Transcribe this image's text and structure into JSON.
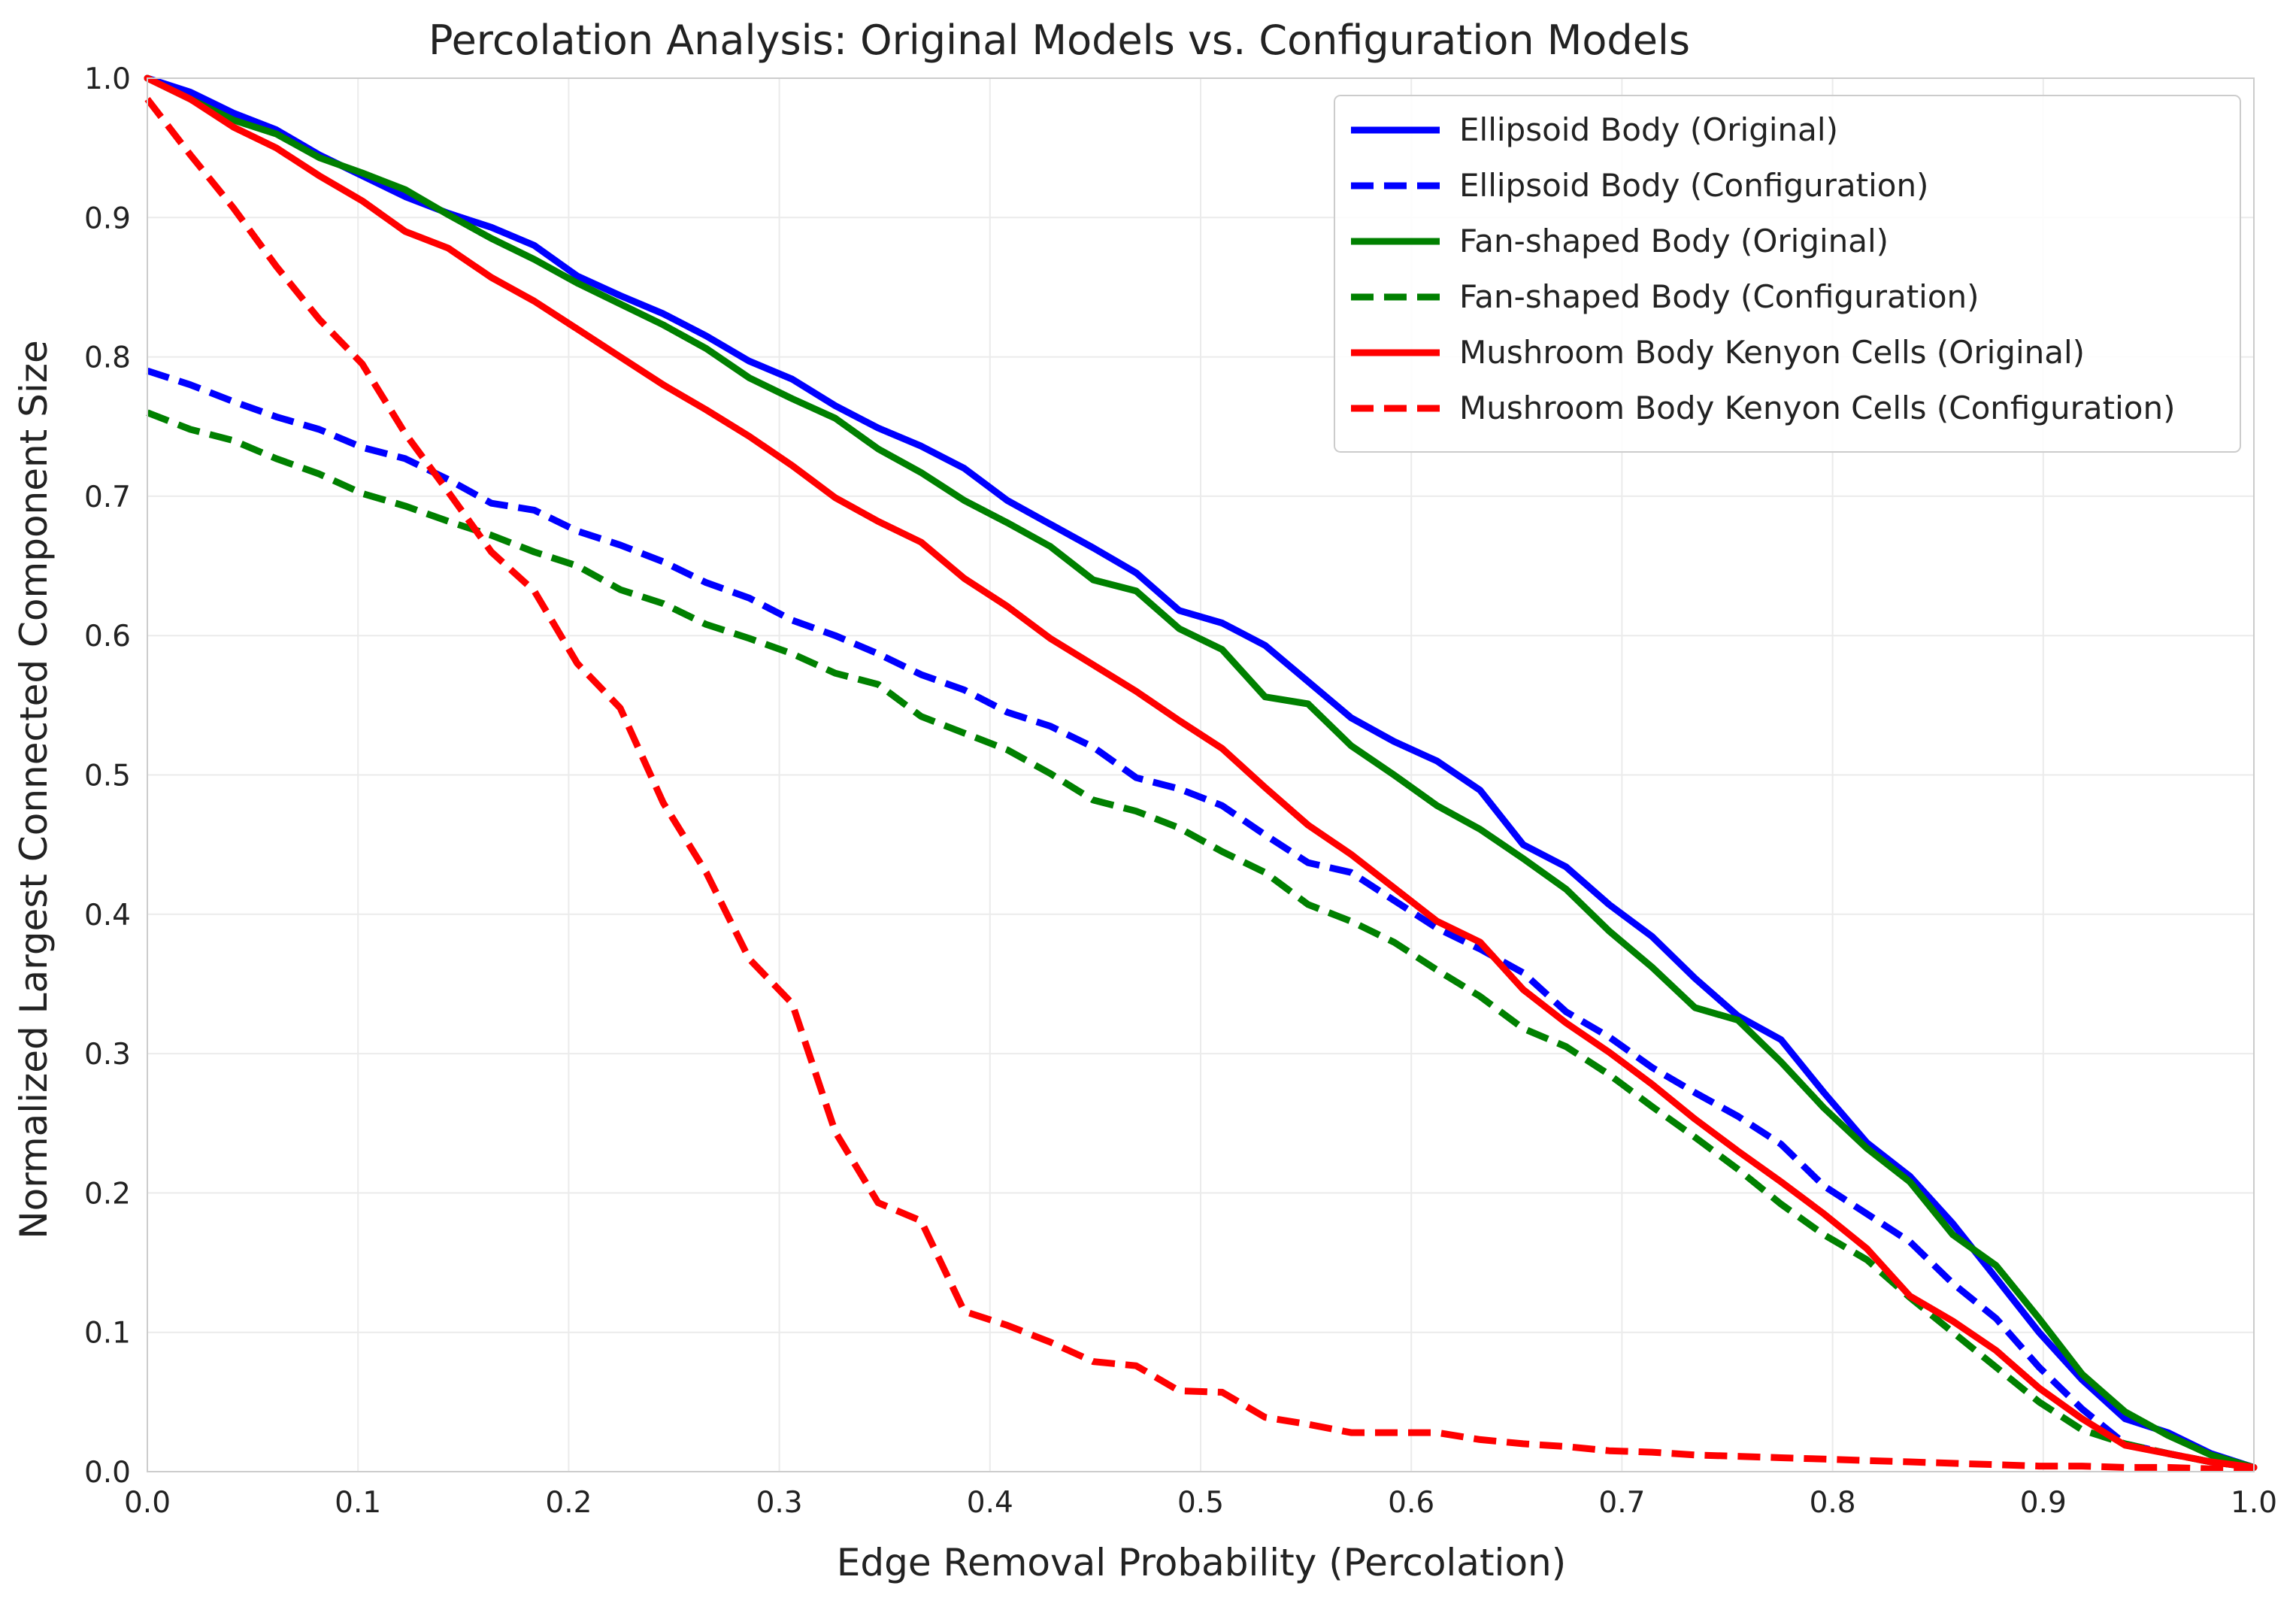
{
  "chart_data": {
    "type": "line",
    "title": "Percolation Analysis: Original Models vs. Configuration Models",
    "xlabel": "Edge Removal Probability (Percolation)",
    "ylabel": "Normalized Largest Connected Component Size",
    "xlim": [
      0.0,
      1.0
    ],
    "ylim": [
      0.0,
      1.0
    ],
    "xticks": [
      "0.0",
      "0.1",
      "0.2",
      "0.3",
      "0.4",
      "0.5",
      "0.6",
      "0.7",
      "0.8",
      "0.9",
      "1.0"
    ],
    "yticks": [
      "0.0",
      "0.1",
      "0.2",
      "0.3",
      "0.4",
      "0.5",
      "0.6",
      "0.7",
      "0.8",
      "0.9",
      "1.0"
    ],
    "grid": true,
    "legend_position": "top-right",
    "x": [
      0.0,
      0.0204,
      0.0408,
      0.0612,
      0.0816,
      0.102,
      0.1224,
      0.1429,
      0.1633,
      0.1837,
      0.2041,
      0.2245,
      0.2449,
      0.2653,
      0.2857,
      0.3061,
      0.3265,
      0.3469,
      0.3673,
      0.3878,
      0.4082,
      0.4286,
      0.449,
      0.4694,
      0.4898,
      0.5102,
      0.5306,
      0.551,
      0.5714,
      0.5918,
      0.6122,
      0.6327,
      0.6531,
      0.6735,
      0.6939,
      0.7143,
      0.7347,
      0.7551,
      0.7755,
      0.7959,
      0.8163,
      0.8367,
      0.8571,
      0.8776,
      0.898,
      0.9184,
      0.9388,
      0.9592,
      0.9796,
      1.0
    ],
    "series": [
      {
        "name": "Ellipsoid Body (Original)",
        "color": "#0000ff",
        "style": "solid",
        "values": [
          1.0,
          0.99,
          0.975,
          0.963,
          0.945,
          0.93,
          0.915,
          0.903,
          0.893,
          0.88,
          0.858,
          0.844,
          0.831,
          0.815,
          0.797,
          0.784,
          0.765,
          0.749,
          0.736,
          0.72,
          0.697,
          0.68,
          0.663,
          0.645,
          0.618,
          0.609,
          0.593,
          0.567,
          0.541,
          0.524,
          0.51,
          0.489,
          0.45,
          0.434,
          0.407,
          0.384,
          0.354,
          0.327,
          0.31,
          0.272,
          0.236,
          0.212,
          0.178,
          0.139,
          0.1,
          0.066,
          0.038,
          0.028,
          0.013,
          0.003
        ]
      },
      {
        "name": "Ellipsoid Body (Configuration)",
        "color": "#0000ff",
        "style": "dashed",
        "values": [
          0.79,
          0.78,
          0.768,
          0.757,
          0.748,
          0.735,
          0.727,
          0.712,
          0.695,
          0.69,
          0.675,
          0.665,
          0.653,
          0.638,
          0.627,
          0.611,
          0.6,
          0.587,
          0.572,
          0.561,
          0.545,
          0.535,
          0.52,
          0.498,
          0.49,
          0.478,
          0.457,
          0.437,
          0.43,
          0.41,
          0.39,
          0.375,
          0.358,
          0.33,
          0.312,
          0.29,
          0.272,
          0.255,
          0.235,
          0.205,
          0.185,
          0.165,
          0.135,
          0.11,
          0.075,
          0.045,
          0.02,
          0.013,
          0.007,
          0.003
        ]
      },
      {
        "name": "Fan-shaped Body (Original)",
        "color": "#008000",
        "style": "solid",
        "values": [
          1.0,
          0.985,
          0.97,
          0.96,
          0.943,
          0.932,
          0.92,
          0.902,
          0.885,
          0.87,
          0.853,
          0.838,
          0.823,
          0.806,
          0.785,
          0.77,
          0.756,
          0.734,
          0.717,
          0.697,
          0.681,
          0.664,
          0.64,
          0.632,
          0.605,
          0.59,
          0.556,
          0.551,
          0.521,
          0.5,
          0.478,
          0.461,
          0.44,
          0.418,
          0.388,
          0.362,
          0.333,
          0.324,
          0.294,
          0.261,
          0.232,
          0.208,
          0.17,
          0.148,
          0.11,
          0.07,
          0.043,
          0.026,
          0.012,
          0.003
        ]
      },
      {
        "name": "Fan-shaped Body (Configuration)",
        "color": "#008000",
        "style": "dashed",
        "values": [
          0.76,
          0.748,
          0.74,
          0.727,
          0.716,
          0.702,
          0.693,
          0.682,
          0.672,
          0.66,
          0.65,
          0.633,
          0.623,
          0.608,
          0.598,
          0.587,
          0.573,
          0.565,
          0.542,
          0.53,
          0.518,
          0.501,
          0.482,
          0.474,
          0.462,
          0.445,
          0.43,
          0.407,
          0.395,
          0.38,
          0.36,
          0.341,
          0.318,
          0.305,
          0.285,
          0.262,
          0.24,
          0.217,
          0.192,
          0.17,
          0.152,
          0.125,
          0.1,
          0.075,
          0.05,
          0.03,
          0.02,
          0.013,
          0.007,
          0.003
        ]
      },
      {
        "name": "Mushroom Body Kenyon Cells (Original)",
        "color": "#ff0000",
        "style": "solid",
        "values": [
          1.0,
          0.985,
          0.965,
          0.95,
          0.93,
          0.912,
          0.89,
          0.878,
          0.857,
          0.84,
          0.82,
          0.8,
          0.78,
          0.762,
          0.743,
          0.722,
          0.699,
          0.682,
          0.667,
          0.641,
          0.621,
          0.598,
          0.579,
          0.56,
          0.539,
          0.519,
          0.491,
          0.464,
          0.443,
          0.419,
          0.395,
          0.38,
          0.346,
          0.322,
          0.301,
          0.278,
          0.253,
          0.23,
          0.208,
          0.185,
          0.16,
          0.126,
          0.108,
          0.087,
          0.06,
          0.038,
          0.019,
          0.013,
          0.007,
          0.003
        ]
      },
      {
        "name": "Mushroom Body Kenyon Cells (Configuration)",
        "color": "#ff0000",
        "style": "dashed",
        "values": [
          0.985,
          0.945,
          0.907,
          0.865,
          0.827,
          0.795,
          0.745,
          0.703,
          0.66,
          0.632,
          0.58,
          0.548,
          0.48,
          0.43,
          0.368,
          0.336,
          0.244,
          0.193,
          0.18,
          0.115,
          0.105,
          0.093,
          0.079,
          0.076,
          0.058,
          0.057,
          0.039,
          0.034,
          0.028,
          0.028,
          0.028,
          0.023,
          0.02,
          0.018,
          0.015,
          0.014,
          0.012,
          0.011,
          0.01,
          0.009,
          0.008,
          0.007,
          0.006,
          0.005,
          0.004,
          0.004,
          0.003,
          0.003,
          0.002,
          0.002
        ]
      }
    ]
  }
}
